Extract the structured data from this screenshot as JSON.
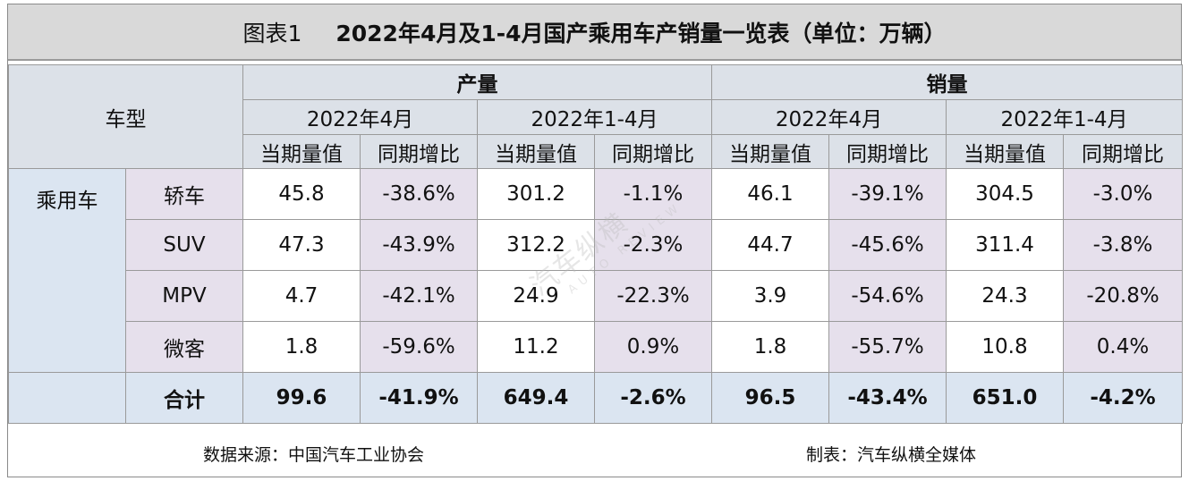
{
  "title": {
    "figure_label": "图表1",
    "main": "2022年4月及1-4月国产乘用车产销量一览表（单位：万辆）"
  },
  "header": {
    "model_type": "车型",
    "production": "产量",
    "sales": "销量",
    "period_apr": "2022年4月",
    "period_jan_apr": "2022年1-4月",
    "current_value": "当期量值",
    "yoy": "同期增比"
  },
  "category": "乘用车",
  "rows": [
    {
      "name": "轿车",
      "prod_apr": "45.8",
      "prod_apr_yoy": "-38.6%",
      "prod_ytd": "301.2",
      "prod_ytd_yoy": "-1.1%",
      "sales_apr": "46.1",
      "sales_apr_yoy": "-39.1%",
      "sales_ytd": "304.5",
      "sales_ytd_yoy": "-3.0%"
    },
    {
      "name": "SUV",
      "prod_apr": "47.3",
      "prod_apr_yoy": "-43.9%",
      "prod_ytd": "312.2",
      "prod_ytd_yoy": "-2.3%",
      "sales_apr": "44.7",
      "sales_apr_yoy": "-45.6%",
      "sales_ytd": "311.4",
      "sales_ytd_yoy": "-3.8%"
    },
    {
      "name": "MPV",
      "prod_apr": "4.7",
      "prod_apr_yoy": "-42.1%",
      "prod_ytd": "24.9",
      "prod_ytd_yoy": "-22.3%",
      "sales_apr": "3.9",
      "sales_apr_yoy": "-54.6%",
      "sales_ytd": "24.3",
      "sales_ytd_yoy": "-20.8%"
    },
    {
      "name": "微客",
      "prod_apr": "1.8",
      "prod_apr_yoy": "-59.6%",
      "prod_ytd": "11.2",
      "prod_ytd_yoy": "0.9%",
      "sales_apr": "1.8",
      "sales_apr_yoy": "-55.7%",
      "sales_ytd": "10.8",
      "sales_ytd_yoy": "0.4%"
    }
  ],
  "total": {
    "name": "合计",
    "prod_apr": "99.6",
    "prod_apr_yoy": "-41.9%",
    "prod_ytd": "649.4",
    "prod_ytd_yoy": "-2.6%",
    "sales_apr": "96.5",
    "sales_apr_yoy": "-43.4%",
    "sales_ytd": "651.0",
    "sales_ytd_yoy": "-4.2%"
  },
  "footer": {
    "source": "数据来源：中国汽车工业协会",
    "made_by": "制表：汽车纵横全媒体"
  },
  "watermark": {
    "cn": "汽车纵横",
    "en": "AUTO REVIEW"
  },
  "colors": {
    "title_bg": "#d9d9d9",
    "header_bg": "#dce1e8",
    "category_bg": "#dbe5f1",
    "yoy_bg": "#e6e0ec",
    "border": "#9a9a9a"
  }
}
